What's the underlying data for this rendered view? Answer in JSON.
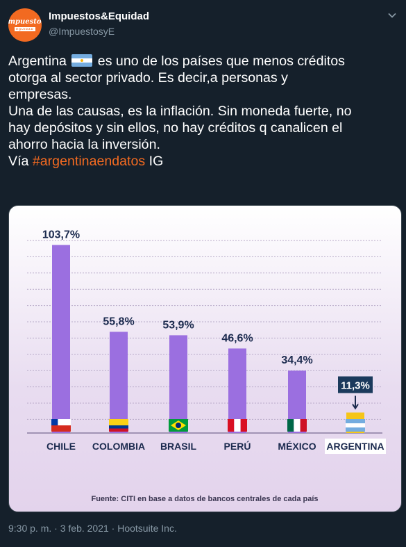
{
  "author": {
    "name": "Impuestos&Equidad",
    "handle": "@ImpuestosyE",
    "avatar_logo_text": "Impuestos",
    "avatar_logo_sub": "EQUIDAD"
  },
  "tweet": {
    "line1_pre": "Argentina",
    "line1_post": "es uno de los países que menos créditos",
    "line2": "otorga al sector privado. Es decir,a personas y",
    "line3": "empresas.",
    "line4": "Una de las causas, es la inflación. Sin moneda fuerte, no",
    "line5": "hay depósitos y sin ellos, no hay créditos q canalicen el",
    "line6": "ahorro hacia la inversión.",
    "line7_pre": "Vía ",
    "hashtag": "#argentinaendatos",
    "line7_post": " IG"
  },
  "chart_data": {
    "type": "bar",
    "categories": [
      "CHILE",
      "COLOMBIA",
      "BRASIL",
      "PERÚ",
      "MÉXICO",
      "ARGENTINA"
    ],
    "values": [
      103.7,
      55.8,
      53.9,
      46.6,
      34.4,
      11.3
    ],
    "value_labels": [
      "103,7%",
      "55,8%",
      "53,9%",
      "46,6%",
      "34,4%",
      "11,3%"
    ],
    "flags": [
      "chile-flag",
      "colombia-flag",
      "brazil-flag",
      "peru-flag",
      "mexico-flag",
      "argentina-flag"
    ],
    "highlight": "ARGENTINA",
    "source": "Fuente: CITI en base a datos de bancos centrales de cada país",
    "ylim": [
      0,
      110
    ],
    "grid": true,
    "colors": {
      "bar": "#9b6fe0",
      "highlight_bar": "#f5c518",
      "label": "#1b2a4e",
      "highlight_label_bg": "#1b3a5c"
    }
  },
  "footer": {
    "time": "9:30 p. m.",
    "date": "3 feb. 2021",
    "client": "Hootsuite Inc.",
    "sep": " · "
  }
}
